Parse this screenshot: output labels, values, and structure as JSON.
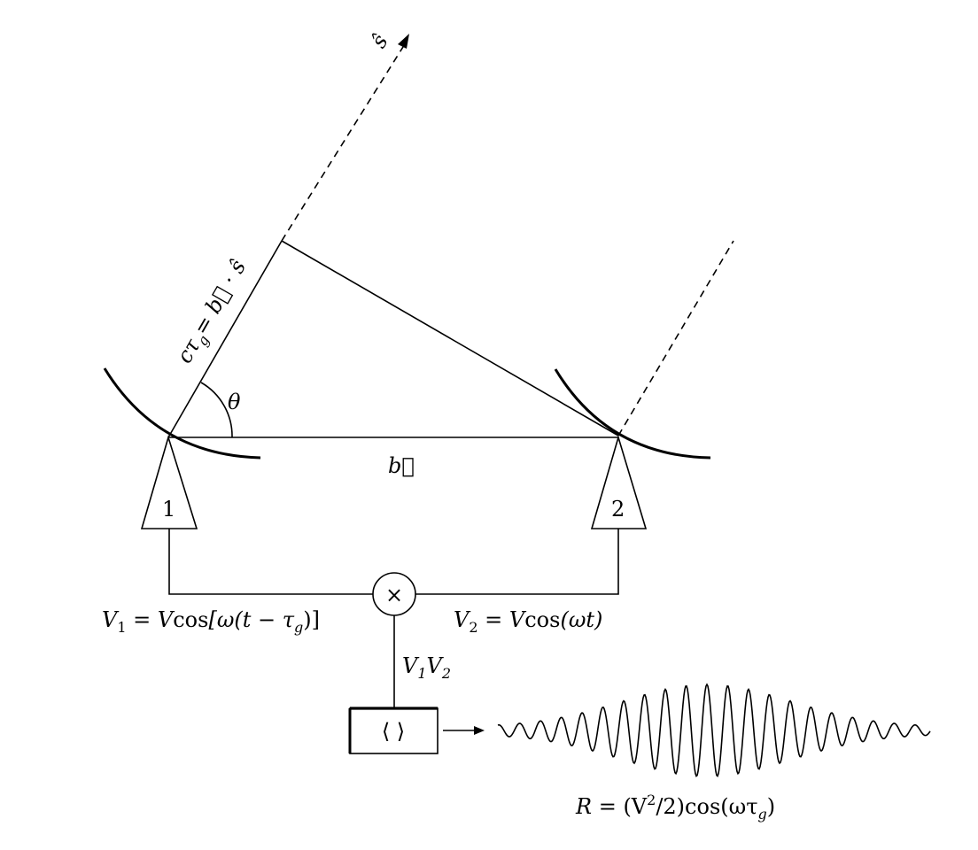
{
  "source_vector_label": "ŝ",
  "delay_label": {
    "lhs_c": "c",
    "lhs_tau": "τ",
    "lhs_sub": "g",
    "rhs": "= b⃗ · ŝ"
  },
  "angle_label": "θ",
  "baseline_label": "b⃗",
  "antennas": [
    {
      "id": "1"
    },
    {
      "id": "2"
    }
  ],
  "multiplier_symbol": "×",
  "v1_equation": {
    "v": "V",
    "sub": "1",
    "mid": " = V",
    "cos": "cos",
    "arg1": "[ω(t − τ",
    "arg_sub": "g",
    "arg2": ")]"
  },
  "v2_equation": {
    "v": "V",
    "sub": "2",
    "mid": " = V",
    "cos": "cos",
    "arg": "(ωt)"
  },
  "product_label": {
    "v1": "V",
    "s1": "1",
    "v2": "V",
    "s2": "2"
  },
  "averager_symbol": "⟨ ⟩",
  "response_equation": {
    "r": "R",
    "eq": " = (V",
    "sup": "2",
    "div": "/2)cos(ωτ",
    "sub": "g",
    "close": ")"
  }
}
